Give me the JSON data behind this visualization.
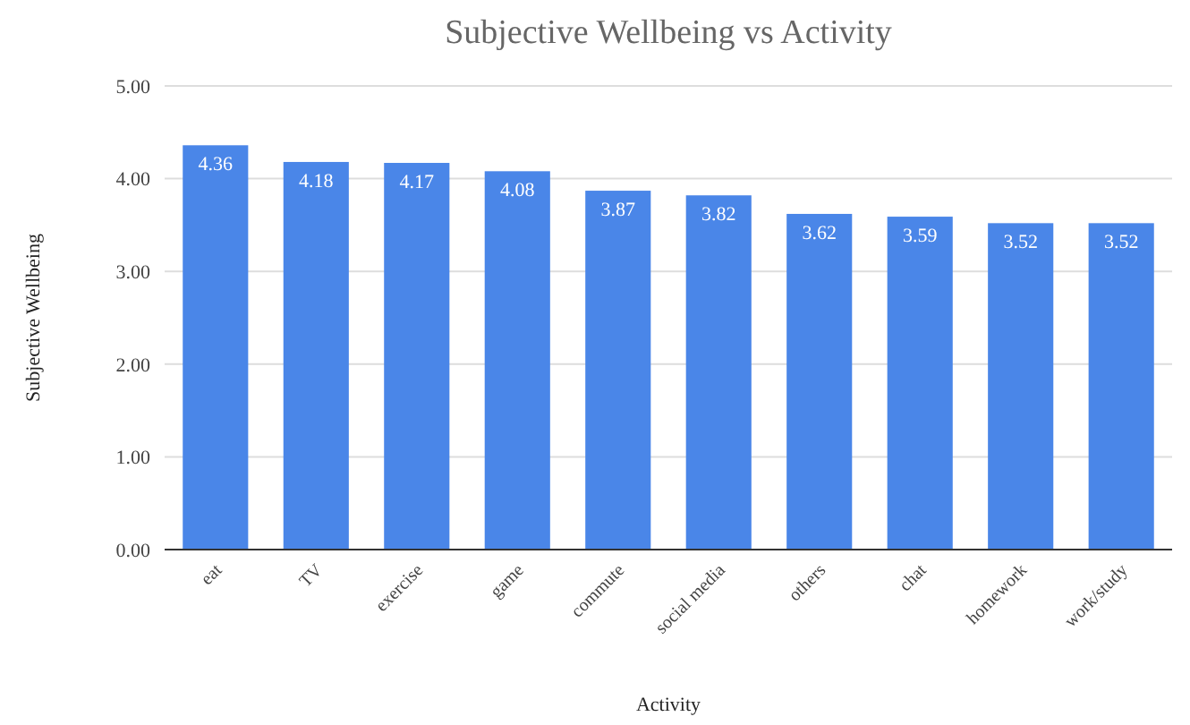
{
  "chart_data": {
    "type": "bar",
    "title": "Subjective Wellbeing vs Activity",
    "xlabel": "Activity",
    "ylabel": "Subjective Wellbeing",
    "categories": [
      "eat",
      "TV",
      "exercise",
      "game",
      "commute",
      "social media",
      "others",
      "chat",
      "homework",
      "work/study"
    ],
    "values": [
      4.36,
      4.18,
      4.17,
      4.08,
      3.87,
      3.82,
      3.62,
      3.59,
      3.52,
      3.52
    ],
    "color": "#4a86e8",
    "ylim": [
      0,
      5
    ],
    "yticks": [
      {
        "value": 0,
        "label": "0.00"
      },
      {
        "value": 1,
        "label": "1.00"
      },
      {
        "value": 2,
        "label": "2.00"
      },
      {
        "value": 3,
        "label": "3.00"
      },
      {
        "value": 4,
        "label": "4.00"
      },
      {
        "value": 5,
        "label": "5.00"
      }
    ],
    "grid": "y",
    "data_labels": true
  }
}
